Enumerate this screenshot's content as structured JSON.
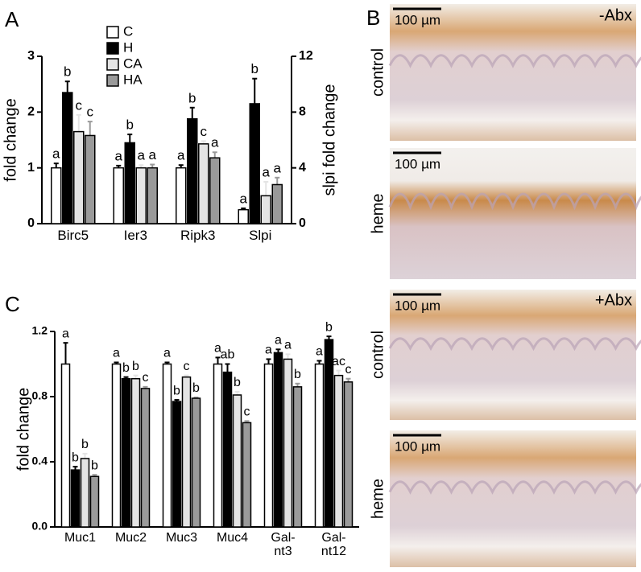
{
  "panel_labels": [
    "A",
    "B",
    "C"
  ],
  "chart_data": [
    {
      "type": "bar",
      "y_label": "fold change",
      "y2_label": "slpi fold change",
      "categories": [
        "Birc5",
        "Ier3",
        "Ripk3",
        "Slpi"
      ],
      "ylim": [
        0,
        3
      ],
      "yticks": [
        0,
        1,
        2,
        3
      ],
      "y2lim": [
        0,
        12
      ],
      "y2ticks": [
        0,
        4,
        8,
        12
      ],
      "series": [
        {
          "name": "C",
          "color": "#ffffff",
          "values": [
            1.0,
            1.0,
            1.0,
            null
          ],
          "errors": [
            0.08,
            0.04,
            0.05,
            null
          ],
          "letters": [
            "a",
            "a",
            "a",
            null
          ]
        },
        {
          "name": "H",
          "color": "#000000",
          "values": [
            2.35,
            1.45,
            1.88,
            null
          ],
          "errors": [
            0.2,
            0.15,
            0.2,
            null
          ],
          "letters": [
            "b",
            "b",
            "b",
            null
          ]
        },
        {
          "name": "CA",
          "color": "#e4e4e4",
          "values": [
            1.65,
            1.0,
            1.43,
            null
          ],
          "errors": [
            0.3,
            0.05,
            0.05,
            null
          ],
          "letters": [
            "c",
            "a",
            "c",
            null
          ]
        },
        {
          "name": "HA",
          "color": "#9a9a9a",
          "values": [
            1.58,
            1.0,
            1.18,
            null
          ],
          "errors": [
            0.25,
            0.06,
            0.1,
            null
          ],
          "letters": [
            "c",
            "a",
            "a",
            null
          ]
        },
        {
          "name": "C",
          "color": "#ffffff",
          "axis": "y2",
          "values": [
            null,
            null,
            null,
            1.0
          ],
          "errors": [
            null,
            null,
            null,
            0.1
          ],
          "letters": [
            null,
            null,
            null,
            "a"
          ]
        },
        {
          "name": "H",
          "color": "#000000",
          "axis": "y2",
          "values": [
            null,
            null,
            null,
            8.6
          ],
          "errors": [
            null,
            null,
            null,
            1.8
          ],
          "letters": [
            null,
            null,
            null,
            "b"
          ]
        },
        {
          "name": "CA",
          "color": "#e4e4e4",
          "axis": "y2",
          "values": [
            null,
            null,
            null,
            2.0
          ],
          "errors": [
            null,
            null,
            null,
            1.0
          ],
          "letters": [
            null,
            null,
            null,
            "a"
          ]
        },
        {
          "name": "HA",
          "color": "#9a9a9a",
          "axis": "y2",
          "values": [
            null,
            null,
            null,
            2.8
          ],
          "errors": [
            null,
            null,
            null,
            0.5
          ],
          "letters": [
            null,
            null,
            null,
            "a"
          ]
        }
      ]
    },
    {
      "type": "bar",
      "y_label": "fold change",
      "categories": [
        "Muc1",
        "Muc2",
        "Muc3",
        "Muc4",
        "Gal-\nnt3",
        "Gal-\nnt12"
      ],
      "ylim": [
        0,
        1.2
      ],
      "yticks": [
        {
          "value": 0,
          "label": "0.0"
        },
        0.4,
        0.8,
        1.2
      ],
      "series": [
        {
          "name": "C",
          "color": "#ffffff",
          "values": [
            1.0,
            1.0,
            1.0,
            1.0,
            1.0,
            1.0
          ],
          "errors": [
            0.13,
            0.01,
            0.01,
            0.04,
            0.03,
            0.02
          ],
          "letters": [
            "a",
            "a",
            "a",
            "a",
            "a",
            "a"
          ]
        },
        {
          "name": "H",
          "color": "#000000",
          "values": [
            0.35,
            0.91,
            0.77,
            0.95,
            1.07,
            1.15
          ],
          "errors": [
            0.02,
            0.01,
            0.01,
            0.05,
            0.02,
            0.02
          ],
          "letters": [
            "b",
            "b",
            "b",
            "ab",
            "a",
            "b"
          ]
        },
        {
          "name": "CA",
          "color": "#e4e4e4",
          "values": [
            0.42,
            0.91,
            0.92,
            0.81,
            1.03,
            0.93
          ],
          "errors": [
            0.03,
            0.02,
            0.01,
            0.02,
            0.03,
            0.03
          ],
          "letters": [
            "b",
            "b",
            "c",
            "b",
            "a",
            "ac"
          ]
        },
        {
          "name": "HA",
          "color": "#9a9a9a",
          "values": [
            0.31,
            0.85,
            0.79,
            0.64,
            0.86,
            0.89
          ],
          "errors": [
            0.01,
            0.01,
            0.005,
            0.01,
            0.02,
            0.02
          ],
          "letters": [
            "b",
            "c",
            "b",
            "c",
            "b",
            "c"
          ]
        }
      ]
    }
  ],
  "panel_b": {
    "treatments": [
      "-Abx",
      "+Abx"
    ],
    "images": [
      {
        "row_label": "control",
        "scale_bar": "100 µm"
      },
      {
        "row_label": "heme",
        "scale_bar": "100 µm"
      },
      {
        "row_label": "control",
        "scale_bar": "100 µm"
      },
      {
        "row_label": "heme",
        "scale_bar": "100 µm"
      }
    ]
  }
}
